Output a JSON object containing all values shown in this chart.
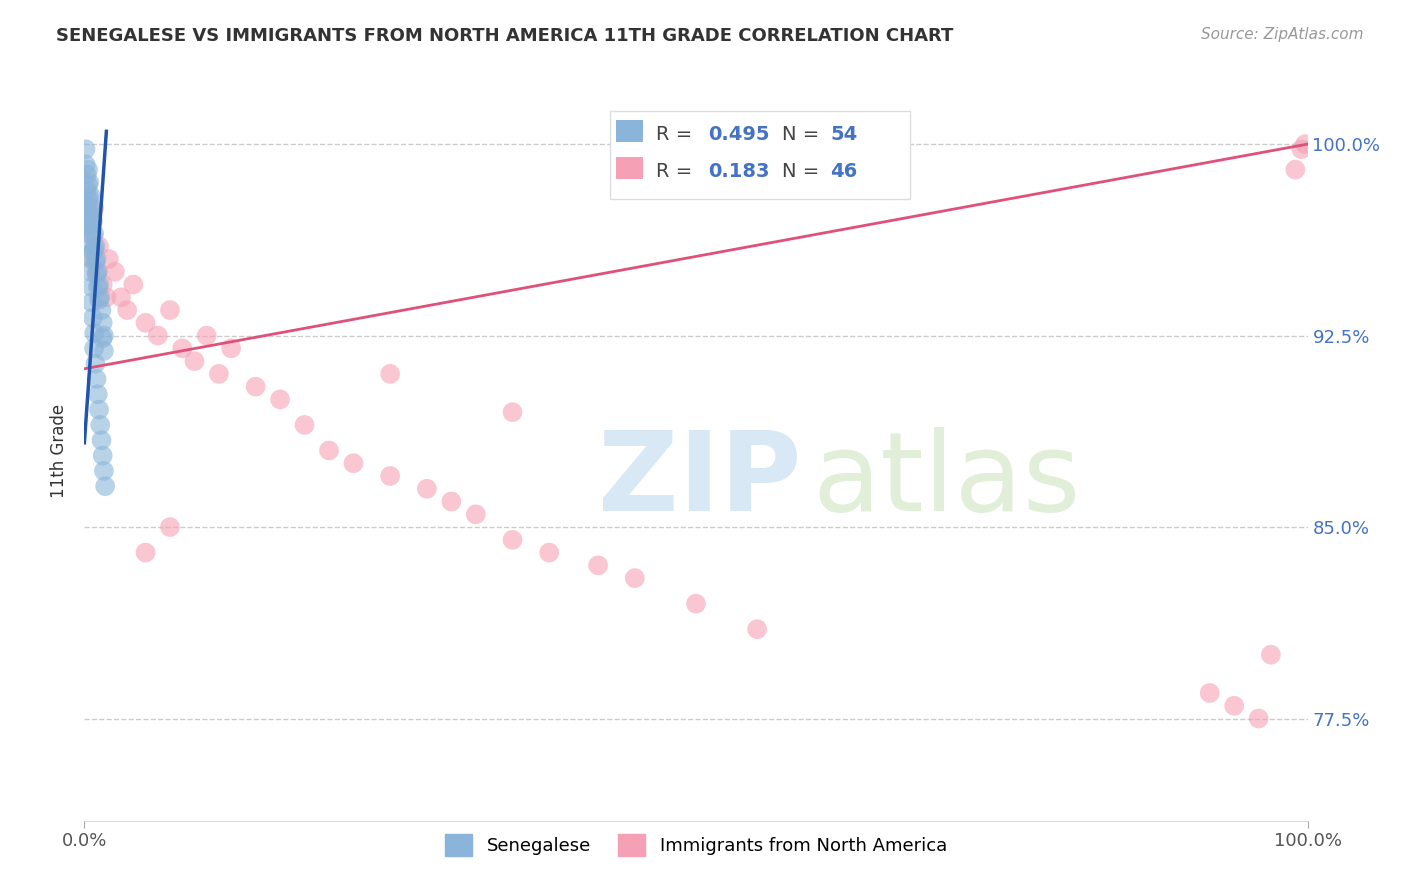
{
  "title": "SENEGALESE VS IMMIGRANTS FROM NORTH AMERICA 11TH GRADE CORRELATION CHART",
  "source": "Source: ZipAtlas.com",
  "ylabel": "11th Grade",
  "blue_R": 0.495,
  "blue_N": 54,
  "pink_R": 0.183,
  "pink_N": 46,
  "blue_color": "#8ab4d9",
  "blue_line_color": "#2255aa",
  "pink_color": "#f5a0b5",
  "pink_line_color": "#e0507a",
  "legend_blue_label": "Senegalese",
  "legend_pink_label": "Immigrants from North America",
  "xlim": [
    0.0,
    1.0
  ],
  "ylim": [
    0.735,
    1.025
  ],
  "ytick_vals": [
    0.775,
    0.85,
    0.925,
    1.0
  ],
  "ytick_labels": [
    "77.5%",
    "85.0%",
    "92.5%",
    "100.0%"
  ],
  "blue_scatter_x": [
    0.001,
    0.001,
    0.002,
    0.002,
    0.002,
    0.003,
    0.003,
    0.003,
    0.003,
    0.004,
    0.004,
    0.004,
    0.005,
    0.005,
    0.005,
    0.006,
    0.006,
    0.007,
    0.007,
    0.007,
    0.008,
    0.008,
    0.009,
    0.009,
    0.01,
    0.01,
    0.011,
    0.011,
    0.012,
    0.012,
    0.013,
    0.014,
    0.015,
    0.015,
    0.016,
    0.016,
    0.002,
    0.003,
    0.004,
    0.005,
    0.006,
    0.006,
    0.007,
    0.008,
    0.008,
    0.009,
    0.01,
    0.011,
    0.012,
    0.013,
    0.014,
    0.015,
    0.016,
    0.017
  ],
  "blue_scatter_y": [
    0.998,
    0.992,
    0.988,
    0.982,
    0.976,
    0.99,
    0.984,
    0.978,
    0.972,
    0.985,
    0.979,
    0.973,
    0.98,
    0.974,
    0.968,
    0.975,
    0.969,
    0.97,
    0.964,
    0.958,
    0.965,
    0.959,
    0.96,
    0.954,
    0.955,
    0.949,
    0.95,
    0.944,
    0.945,
    0.939,
    0.94,
    0.935,
    0.93,
    0.924,
    0.925,
    0.919,
    0.968,
    0.962,
    0.956,
    0.95,
    0.944,
    0.938,
    0.932,
    0.926,
    0.92,
    0.914,
    0.908,
    0.902,
    0.896,
    0.89,
    0.884,
    0.878,
    0.872,
    0.866
  ],
  "pink_scatter_x": [
    0.003,
    0.005,
    0.008,
    0.01,
    0.012,
    0.015,
    0.018,
    0.02,
    0.025,
    0.03,
    0.035,
    0.04,
    0.05,
    0.06,
    0.07,
    0.08,
    0.09,
    0.1,
    0.11,
    0.12,
    0.14,
    0.16,
    0.18,
    0.2,
    0.22,
    0.25,
    0.28,
    0.3,
    0.32,
    0.35,
    0.38,
    0.42,
    0.45,
    0.5,
    0.55,
    0.92,
    0.94,
    0.96,
    0.97,
    0.99,
    0.995,
    0.998,
    0.05,
    0.07,
    0.25,
    0.35
  ],
  "pink_scatter_y": [
    0.965,
    0.955,
    0.975,
    0.95,
    0.96,
    0.945,
    0.94,
    0.955,
    0.95,
    0.94,
    0.935,
    0.945,
    0.93,
    0.925,
    0.935,
    0.92,
    0.915,
    0.925,
    0.91,
    0.92,
    0.905,
    0.9,
    0.89,
    0.88,
    0.875,
    0.87,
    0.865,
    0.86,
    0.855,
    0.845,
    0.84,
    0.835,
    0.83,
    0.82,
    0.81,
    0.785,
    0.78,
    0.775,
    0.8,
    0.99,
    0.998,
    1.0,
    0.84,
    0.85,
    0.91,
    0.895
  ],
  "blue_line_x0": 0.0,
  "blue_line_y0": 0.883,
  "blue_line_x1": 0.018,
  "blue_line_y1": 1.005,
  "pink_line_x0": 0.0,
  "pink_line_y0": 0.912,
  "pink_line_x1": 1.0,
  "pink_line_y1": 1.0
}
